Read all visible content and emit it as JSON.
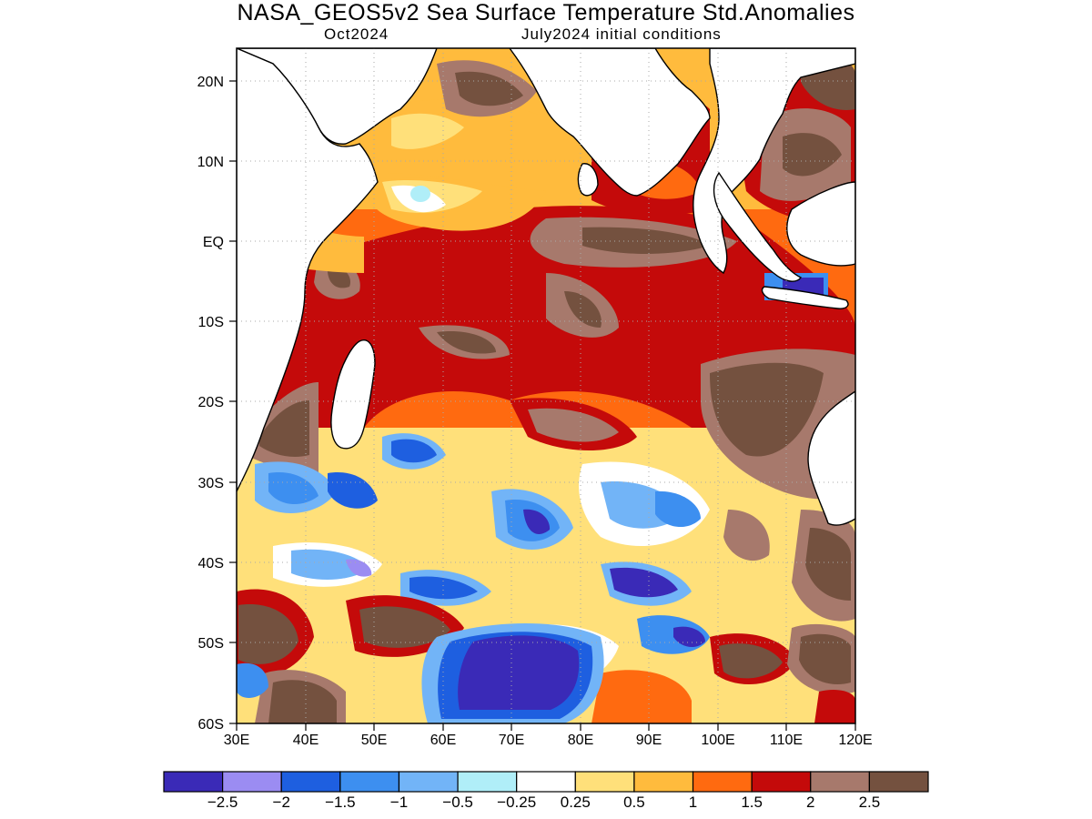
{
  "title": "NASA_GEOS5v2 Sea Surface Temperature Std.Anomalies",
  "subtitle_left": "Oct2024",
  "subtitle_right": "July2024 initial conditions",
  "map": {
    "lon_range": [
      30,
      120
    ],
    "lat_range": [
      -60,
      24
    ],
    "lat_ticks": [
      "20N",
      "10N",
      "EQ",
      "10S",
      "20S",
      "30S",
      "40S",
      "50S",
      "60S"
    ],
    "lon_ticks": [
      "30E",
      "40E",
      "50E",
      "60E",
      "70E",
      "80E",
      "90E",
      "100E",
      "110E",
      "120E"
    ],
    "grid_lines": "dotted",
    "land_color": "#ffffff"
  },
  "colorbar": {
    "colors": [
      "#3a2ab7",
      "#9b8cf2",
      "#1e5fe0",
      "#3d8ff0",
      "#72b4f7",
      "#b0eef8",
      "#ffffff",
      "#ffe07a",
      "#ffbb3d",
      "#ff6a10",
      "#c40a0a",
      "#a7796c",
      "#74513f"
    ],
    "labels": [
      "−2.5",
      "−2",
      "−1.5",
      "−1",
      "−0.5",
      "−0.25",
      "0.25",
      "0.5",
      "1",
      "1.5",
      "2",
      "2.5"
    ]
  }
}
